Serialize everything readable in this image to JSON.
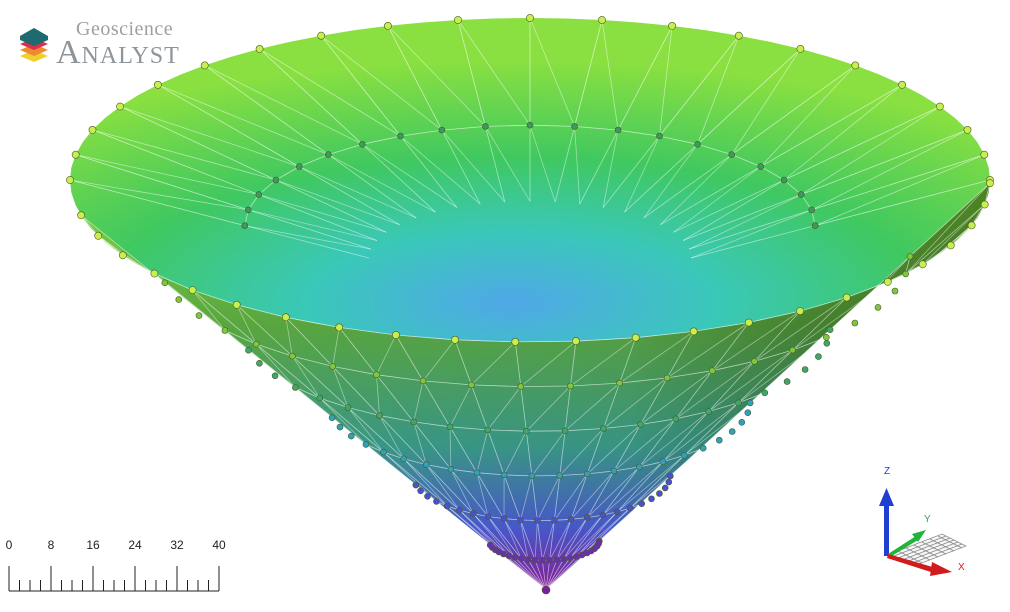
{
  "app": {
    "logo_line1": "Geoscience",
    "logo_line2": "Analyst"
  },
  "scale_bar": {
    "labels": [
      "0",
      "8",
      "16",
      "24",
      "32",
      "40"
    ]
  },
  "axes": {
    "z_label": "Z",
    "y_label": "Y",
    "x_label": "X",
    "colors": {
      "z": "#1f3fd0",
      "y": "#22b33a",
      "x": "#d01c1c"
    }
  },
  "mesh": {
    "colormap": [
      "#8b1fa0",
      "#4a4ad0",
      "#2fa8c8",
      "#40c870",
      "#7fe040",
      "#c8f060"
    ],
    "wire_color": "#ffffff",
    "node_color_high": "#c8ee50",
    "node_color_low": "#6a2fb0"
  }
}
